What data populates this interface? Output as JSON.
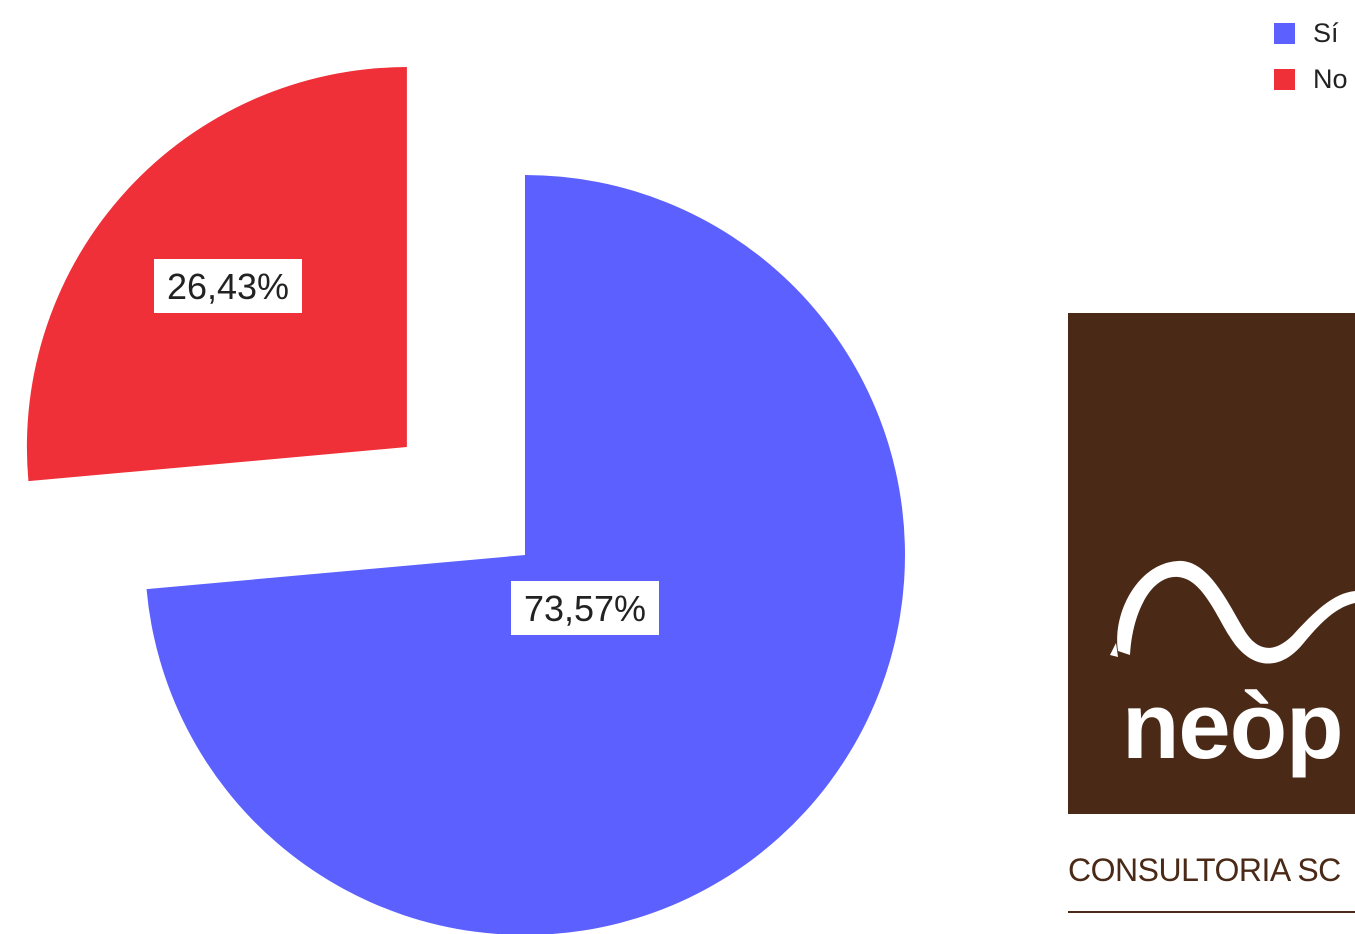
{
  "chart_data": {
    "type": "pie",
    "title": "",
    "slices": [
      {
        "label": "Sí",
        "value": 73.57,
        "value_label": "73,57%",
        "color": "#5c60ff"
      },
      {
        "label": "No",
        "value": 26.43,
        "value_label": "26,43%",
        "color": "#ef3038"
      }
    ],
    "start_angle": "12 o'clock",
    "direction": "clockwise",
    "exploded_slice": "No",
    "legend": {
      "position": "top-right"
    }
  },
  "logo": {
    "wordmark": "neòp",
    "tagline": "CONSULTORIA SC",
    "background_color": "#4a2a17"
  }
}
